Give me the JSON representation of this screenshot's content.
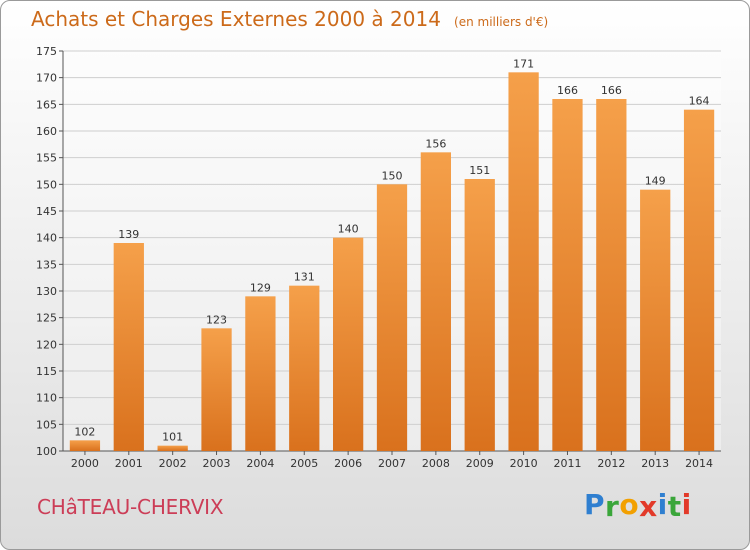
{
  "title": "Achats et Charges Externes 2000 à 2014",
  "unit_note": "(en milliers d'€)",
  "commune": "CHâTEAU-CHERVIX",
  "logo": {
    "letters": [
      "P",
      "r",
      "o",
      "x",
      "i",
      "t",
      "i"
    ],
    "colors": [
      "#2f7fd0",
      "#3aa63a",
      "#f2a000",
      "#e23a2a",
      "#2f7fd0",
      "#3aa63a",
      "#e23a2a"
    ]
  },
  "colors": {
    "title": "#cc6a1a",
    "commune": "#cc3d57",
    "bar_light": "#f5a04a",
    "bar_dark": "#d9711d",
    "grid": "#cfcfcf"
  },
  "chart_data": {
    "type": "bar",
    "categories": [
      "2000",
      "2001",
      "2002",
      "2003",
      "2004",
      "2005",
      "2006",
      "2007",
      "2008",
      "2009",
      "2010",
      "2011",
      "2012",
      "2013",
      "2014"
    ],
    "values": [
      102,
      139,
      101,
      123,
      129,
      131,
      140,
      150,
      156,
      151,
      171,
      166,
      166,
      149,
      164
    ],
    "ylim": [
      100,
      175
    ],
    "yticks": [
      100,
      105,
      110,
      115,
      120,
      125,
      130,
      135,
      140,
      145,
      150,
      155,
      160,
      165,
      170,
      175
    ],
    "grid": true
  }
}
